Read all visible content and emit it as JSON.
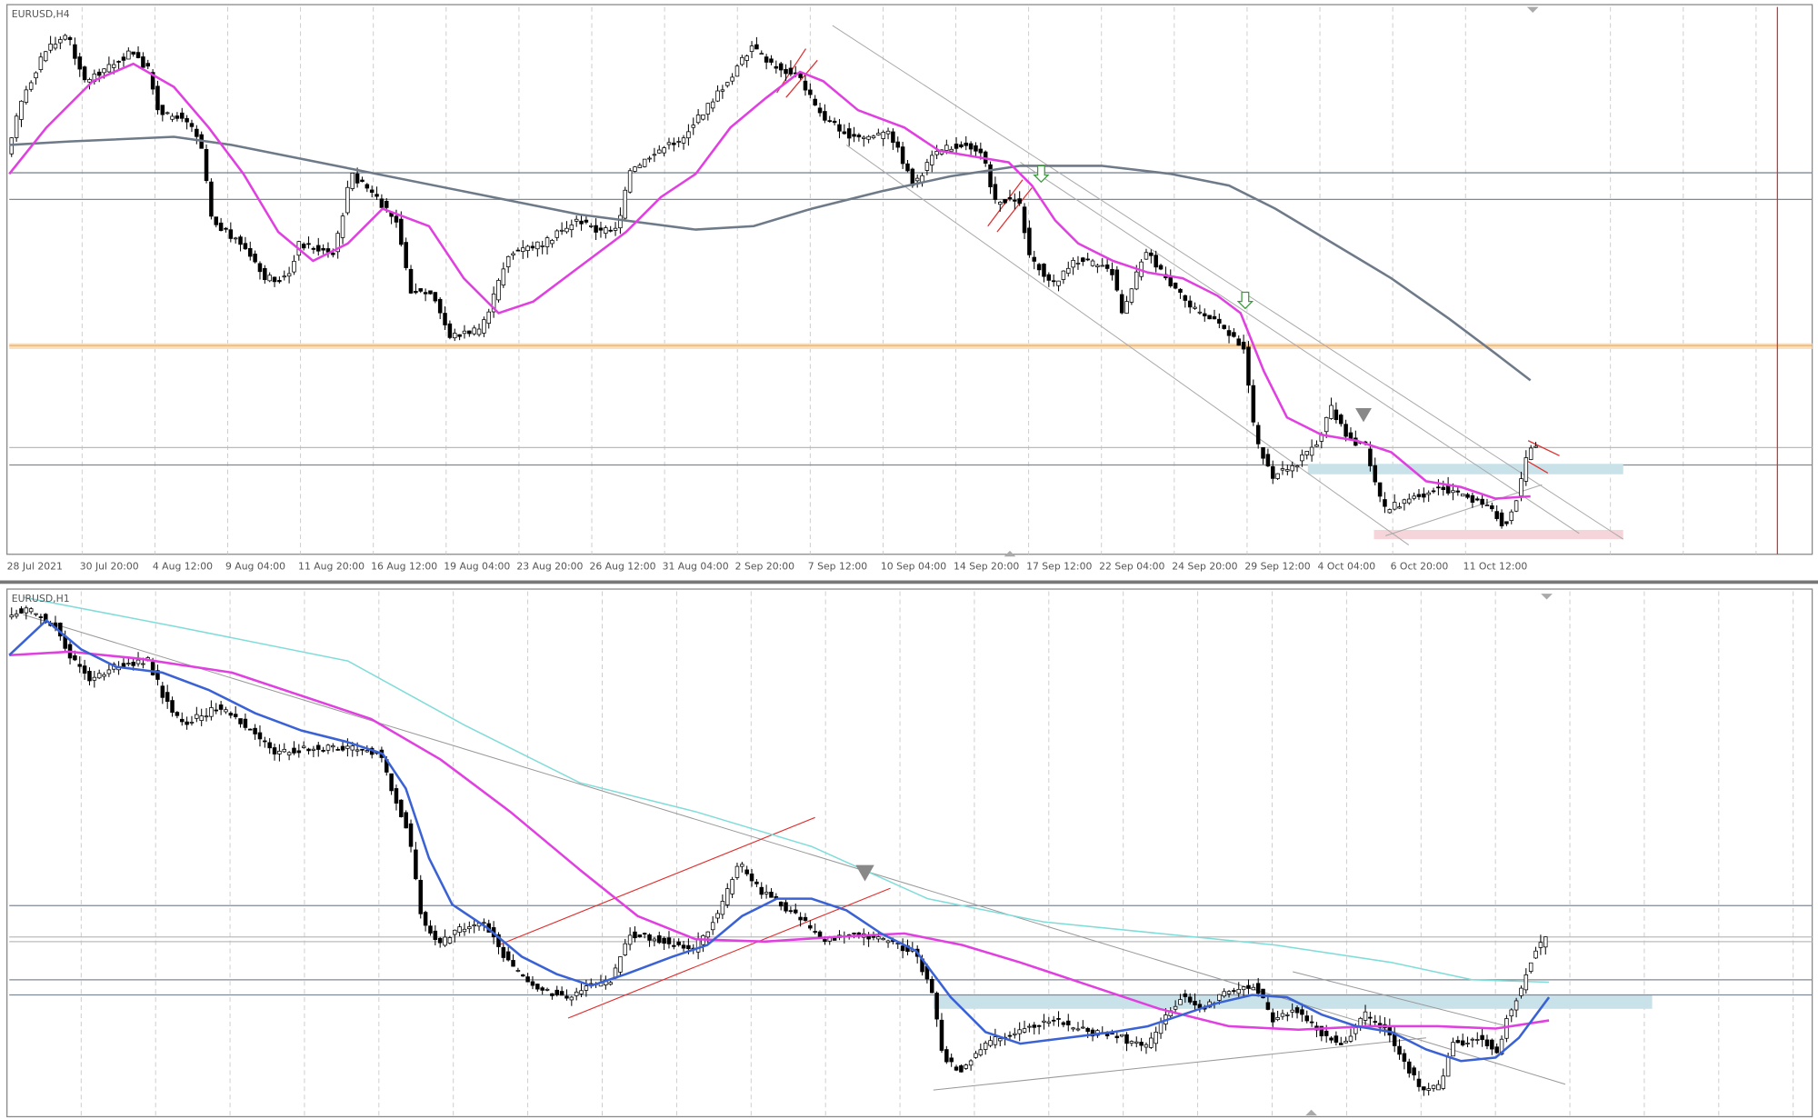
{
  "panels": [
    {
      "title": "EURUSD,H4",
      "time_labels": [
        "28 Jul 2021",
        "30 Jul 20:00",
        "4 Aug 12:00",
        "9 Aug 04:00",
        "11 Aug 20:00",
        "16 Aug 12:00",
        "19 Aug 04:00",
        "23 Aug 20:00",
        "26 Aug 12:00",
        "31 Aug 04:00",
        "2 Sep 20:00",
        "7 Sep 12:00",
        "10 Sep 04:00",
        "14 Sep 20:00",
        "17 Sep 12:00",
        "22 Sep 04:00",
        "24 Sep 20:00",
        "29 Sep 12:00",
        "4 Oct 04:00",
        "6 Oct 20:00",
        "11 Oct 12:00"
      ]
    },
    {
      "title": "EURUSD,H1"
    }
  ]
}
